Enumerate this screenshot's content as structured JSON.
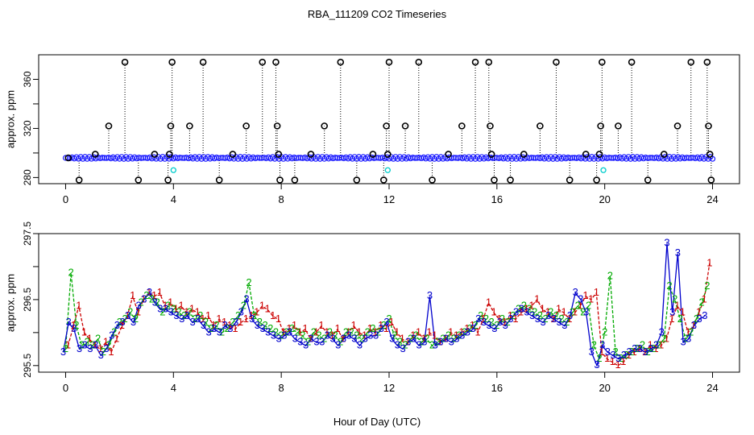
{
  "figure": {
    "title": "RBA_111209  CO2 Timeseries",
    "xlabel": "Hour of Day (UTC)"
  },
  "chart_data": [
    {
      "type": "scatter",
      "panel": "top",
      "ylabel": "approx. ppm",
      "xlim": [
        -1,
        25
      ],
      "ylim": [
        275,
        380
      ],
      "xticks": [
        0,
        4,
        8,
        12,
        16,
        20,
        24
      ],
      "yticks": [
        280,
        320,
        360
      ],
      "yticks_minor": [
        300,
        340
      ],
      "baseline": 296,
      "series": [
        {
          "color": "#1a1aff",
          "marker": "circle-dense",
          "x_range": [
            0,
            24
          ],
          "y_approx": 296
        },
        {
          "color": "#000000",
          "marker": "circle",
          "points": [
            [
              0.1,
              296
            ],
            [
              0.5,
              278
            ],
            [
              1.1,
              299
            ],
            [
              1.6,
              322
            ],
            [
              2.2,
              374
            ],
            [
              2.7,
              278
            ],
            [
              3.3,
              299
            ],
            [
              3.8,
              278
            ],
            [
              3.85,
              299
            ],
            [
              3.9,
              322
            ],
            [
              3.95,
              374
            ],
            [
              4.6,
              322
            ],
            [
              5.1,
              374
            ],
            [
              5.7,
              278
            ],
            [
              6.2,
              299
            ],
            [
              6.7,
              322
            ],
            [
              7.3,
              374
            ],
            [
              7.8,
              374
            ],
            [
              7.85,
              322
            ],
            [
              7.9,
              299
            ],
            [
              7.95,
              278
            ],
            [
              8.5,
              278
            ],
            [
              9.1,
              299
            ],
            [
              9.6,
              322
            ],
            [
              10.2,
              374
            ],
            [
              10.8,
              278
            ],
            [
              11.4,
              299
            ],
            [
              11.8,
              278
            ],
            [
              11.9,
              322
            ],
            [
              11.95,
              299
            ],
            [
              12.0,
              374
            ],
            [
              12.6,
              322
            ],
            [
              13.1,
              374
            ],
            [
              13.6,
              278
            ],
            [
              14.2,
              299
            ],
            [
              14.7,
              322
            ],
            [
              15.2,
              374
            ],
            [
              15.7,
              374
            ],
            [
              15.75,
              322
            ],
            [
              15.8,
              299
            ],
            [
              15.9,
              278
            ],
            [
              16.5,
              278
            ],
            [
              17.0,
              299
            ],
            [
              17.6,
              322
            ],
            [
              18.2,
              374
            ],
            [
              18.7,
              278
            ],
            [
              19.3,
              299
            ],
            [
              19.7,
              278
            ],
            [
              19.8,
              299
            ],
            [
              19.85,
              322
            ],
            [
              19.9,
              374
            ],
            [
              20.5,
              322
            ],
            [
              21.0,
              374
            ],
            [
              21.6,
              278
            ],
            [
              22.2,
              299
            ],
            [
              22.7,
              322
            ],
            [
              23.2,
              374
            ],
            [
              23.8,
              374
            ],
            [
              23.85,
              322
            ],
            [
              23.9,
              299
            ],
            [
              23.95,
              278
            ]
          ]
        },
        {
          "color": "#00cccc",
          "marker": "circle",
          "points": [
            [
              4.0,
              286
            ],
            [
              11.95,
              286
            ],
            [
              19.95,
              286
            ]
          ]
        }
      ]
    },
    {
      "type": "line",
      "panel": "bottom",
      "ylabel": "approx. ppm",
      "xlim": [
        -1,
        25
      ],
      "ylim": [
        295.4,
        297.5
      ],
      "xticks": [
        0,
        4,
        8,
        12,
        16,
        20,
        24
      ],
      "yticks": [
        295.5,
        296.5,
        297.5
      ],
      "yticks_minor": [
        296.0,
        297.0
      ],
      "series": [
        {
          "name": "1",
          "color": "#cc0000",
          "line": "dashed",
          "x": [
            0,
            0.2,
            0.4,
            0.6,
            0.8,
            1,
            1.2,
            1.4,
            1.6,
            1.8,
            2,
            2.2,
            2.4,
            2.6,
            2.8,
            3,
            3.2,
            3.4,
            3.6,
            3.8,
            4,
            4.2,
            4.4,
            4.6,
            4.8,
            5,
            5.2,
            5.4,
            5.6,
            5.8,
            6,
            6.2,
            6.4,
            6.6,
            6.8,
            7,
            7.2,
            7.4,
            7.6,
            7.8,
            8,
            8.2,
            8.4,
            8.6,
            8.8,
            9,
            9.2,
            9.4,
            9.6,
            9.8,
            10,
            10.2,
            10.4,
            10.6,
            10.8,
            11,
            11.2,
            11.4,
            11.6,
            11.8,
            12,
            12.2,
            12.4,
            12.6,
            12.8,
            13,
            13.2,
            13.4,
            13.6,
            13.8,
            14,
            14.2,
            14.4,
            14.6,
            14.8,
            15,
            15.2,
            15.4,
            15.6,
            15.8,
            16,
            16.2,
            16.4,
            16.6,
            16.8,
            17,
            17.2,
            17.4,
            17.6,
            17.8,
            18,
            18.2,
            18.4,
            18.6,
            18.8,
            19,
            19.2,
            19.4,
            19.6,
            19.8,
            20,
            20.2,
            20.4,
            20.6,
            20.8,
            21,
            21.2,
            21.4,
            21.6,
            21.8,
            22,
            22.2,
            22.4,
            22.6,
            22.8,
            23,
            23.2,
            23.4,
            23.6,
            23.8
          ],
          "values": [
            295.8,
            296.1,
            296.4,
            296.0,
            295.9,
            295.8,
            295.75,
            295.85,
            295.7,
            295.9,
            296.1,
            296.25,
            296.55,
            296.3,
            296.5,
            296.6,
            296.55,
            296.6,
            296.4,
            296.45,
            296.35,
            296.4,
            296.3,
            296.35,
            296.3,
            296.2,
            296.25,
            296.1,
            296.2,
            296.15,
            296.1,
            296.05,
            296.15,
            296.2,
            296.25,
            296.3,
            296.4,
            296.35,
            296.25,
            296.2,
            296.0,
            296.05,
            296.1,
            296.0,
            296.05,
            295.9,
            296.0,
            296.1,
            296.0,
            295.95,
            296.05,
            295.9,
            296.0,
            296.1,
            296.0,
            295.95,
            296.05,
            296.0,
            296.1,
            296.05,
            296.15,
            296.0,
            295.9,
            295.85,
            295.95,
            296.0,
            295.9,
            296.0,
            295.95,
            295.85,
            295.9,
            296.0,
            295.95,
            296.0,
            296.05,
            296.1,
            296.0,
            296.2,
            296.45,
            296.3,
            296.2,
            296.15,
            296.25,
            296.2,
            296.3,
            296.35,
            296.4,
            296.5,
            296.35,
            296.3,
            296.2,
            296.35,
            296.3,
            296.2,
            296.3,
            296.4,
            296.55,
            296.5,
            296.6,
            295.7,
            295.6,
            295.55,
            295.5,
            295.55,
            295.65,
            295.7,
            295.75,
            295.7,
            295.8,
            295.75,
            295.8,
            295.9,
            296.2,
            296.4,
            296.3,
            296.0,
            296.1,
            296.3,
            296.5,
            297.05
          ]
        },
        {
          "name": "2",
          "color": "#00aa00",
          "line": "dashed",
          "x": [
            0,
            0.2,
            0.4,
            0.6,
            0.8,
            1,
            1.2,
            1.4,
            1.6,
            1.8,
            2,
            2.2,
            2.4,
            2.6,
            2.8,
            3,
            3.2,
            3.4,
            3.6,
            3.8,
            4,
            4.2,
            4.4,
            4.6,
            4.8,
            5,
            5.2,
            5.4,
            5.6,
            5.8,
            6,
            6.2,
            6.4,
            6.6,
            6.8,
            7,
            7.2,
            7.4,
            7.6,
            7.8,
            8,
            8.2,
            8.4,
            8.6,
            8.8,
            9,
            9.2,
            9.4,
            9.6,
            9.8,
            10,
            10.2,
            10.4,
            10.6,
            10.8,
            11,
            11.2,
            11.4,
            11.6,
            11.8,
            12,
            12.2,
            12.4,
            12.6,
            12.8,
            13,
            13.2,
            13.4,
            13.6,
            13.8,
            14,
            14.2,
            14.4,
            14.6,
            14.8,
            15,
            15.2,
            15.4,
            15.6,
            15.8,
            16,
            16.2,
            16.4,
            16.6,
            16.8,
            17,
            17.2,
            17.4,
            17.6,
            17.8,
            18,
            18.2,
            18.4,
            18.6,
            18.8,
            19,
            19.2,
            19.4,
            19.6,
            19.8,
            20,
            20.2,
            20.4,
            20.6,
            20.8,
            21,
            21.2,
            21.4,
            21.6,
            21.8,
            22,
            22.2,
            22.4,
            22.6,
            22.8,
            23,
            23.2,
            23.4,
            23.6,
            23.8
          ],
          "values": [
            295.75,
            296.9,
            296.1,
            295.8,
            295.85,
            295.8,
            295.9,
            295.7,
            295.8,
            296.0,
            296.15,
            296.2,
            296.3,
            296.2,
            296.45,
            296.55,
            296.5,
            296.45,
            296.3,
            296.4,
            296.35,
            296.3,
            296.25,
            296.3,
            296.2,
            296.25,
            296.15,
            296.05,
            296.1,
            296.0,
            296.05,
            296.15,
            296.25,
            296.4,
            296.75,
            296.25,
            296.15,
            296.1,
            296.05,
            296.0,
            295.95,
            296.0,
            296.05,
            296.0,
            295.95,
            295.85,
            296.0,
            295.95,
            295.9,
            296.0,
            295.95,
            295.85,
            296.0,
            296.0,
            295.95,
            295.9,
            296.0,
            296.05,
            296.0,
            296.1,
            296.2,
            295.95,
            295.85,
            295.8,
            295.9,
            295.95,
            295.85,
            295.9,
            295.8,
            295.85,
            295.9,
            295.95,
            295.9,
            295.95,
            296.0,
            296.05,
            296.1,
            296.25,
            296.2,
            296.15,
            296.1,
            296.2,
            296.15,
            296.25,
            296.35,
            296.4,
            296.35,
            296.3,
            296.25,
            296.2,
            296.3,
            296.25,
            296.2,
            296.15,
            296.3,
            296.4,
            296.3,
            296.4,
            295.8,
            295.6,
            296.0,
            296.85,
            295.7,
            295.6,
            295.65,
            295.7,
            295.75,
            295.8,
            295.7,
            295.75,
            295.8,
            295.9,
            296.7,
            296.5,
            296.2,
            295.9,
            296.0,
            296.2,
            296.45,
            296.7
          ]
        },
        {
          "name": "3",
          "color": "#0000cc",
          "line": "solid",
          "x": [
            0,
            0.2,
            0.4,
            0.6,
            0.8,
            1,
            1.2,
            1.4,
            1.6,
            1.8,
            2,
            2.2,
            2.4,
            2.6,
            2.8,
            3,
            3.2,
            3.4,
            3.6,
            3.8,
            4,
            4.2,
            4.4,
            4.6,
            4.8,
            5,
            5.2,
            5.4,
            5.6,
            5.8,
            6,
            6.2,
            6.4,
            6.6,
            6.8,
            7,
            7.2,
            7.4,
            7.6,
            7.8,
            8,
            8.2,
            8.4,
            8.6,
            8.8,
            9,
            9.2,
            9.4,
            9.6,
            9.8,
            10,
            10.2,
            10.4,
            10.6,
            10.8,
            11,
            11.2,
            11.4,
            11.6,
            11.8,
            12,
            12.2,
            12.4,
            12.6,
            12.8,
            13,
            13.2,
            13.4,
            13.6,
            13.8,
            14,
            14.2,
            14.4,
            14.6,
            14.8,
            15,
            15.2,
            15.4,
            15.6,
            15.8,
            16,
            16.2,
            16.4,
            16.6,
            16.8,
            17,
            17.2,
            17.4,
            17.6,
            17.8,
            18,
            18.2,
            18.4,
            18.6,
            18.8,
            19,
            19.2,
            19.4,
            19.6,
            19.8,
            20,
            20.2,
            20.4,
            20.6,
            20.8,
            21,
            21.2,
            21.4,
            21.6,
            21.8,
            22,
            22.2,
            22.4,
            22.6,
            22.8,
            23,
            23.2,
            23.4,
            23.6,
            23.8
          ],
          "values": [
            295.7,
            296.15,
            296.05,
            295.75,
            295.8,
            295.75,
            295.8,
            295.65,
            295.75,
            295.95,
            296.1,
            296.15,
            296.25,
            296.15,
            296.4,
            296.5,
            296.6,
            296.45,
            296.35,
            296.35,
            296.3,
            296.25,
            296.2,
            296.25,
            296.15,
            296.2,
            296.1,
            296.0,
            296.05,
            296.0,
            296.1,
            296.05,
            296.15,
            296.3,
            296.5,
            296.2,
            296.1,
            296.05,
            296.0,
            295.95,
            295.9,
            295.95,
            296.0,
            295.9,
            295.85,
            295.8,
            295.9,
            295.85,
            295.85,
            295.95,
            295.9,
            295.8,
            295.9,
            295.95,
            295.9,
            295.8,
            295.9,
            295.95,
            295.95,
            296.05,
            296.15,
            295.9,
            295.8,
            295.75,
            295.85,
            295.9,
            295.8,
            295.85,
            296.55,
            295.8,
            295.85,
            295.9,
            295.85,
            295.9,
            295.95,
            296.0,
            296.05,
            296.2,
            296.15,
            296.1,
            296.05,
            296.15,
            296.1,
            296.2,
            296.3,
            296.35,
            296.3,
            296.25,
            296.2,
            296.15,
            296.25,
            296.2,
            296.15,
            296.1,
            296.25,
            296.6,
            296.5,
            296.3,
            295.7,
            295.5,
            295.8,
            295.7,
            295.65,
            295.6,
            295.65,
            295.7,
            295.75,
            295.75,
            295.7,
            295.75,
            295.8,
            296.0,
            297.35,
            296.3,
            297.2,
            295.85,
            295.9,
            296.1,
            296.2,
            296.25
          ]
        }
      ]
    }
  ]
}
